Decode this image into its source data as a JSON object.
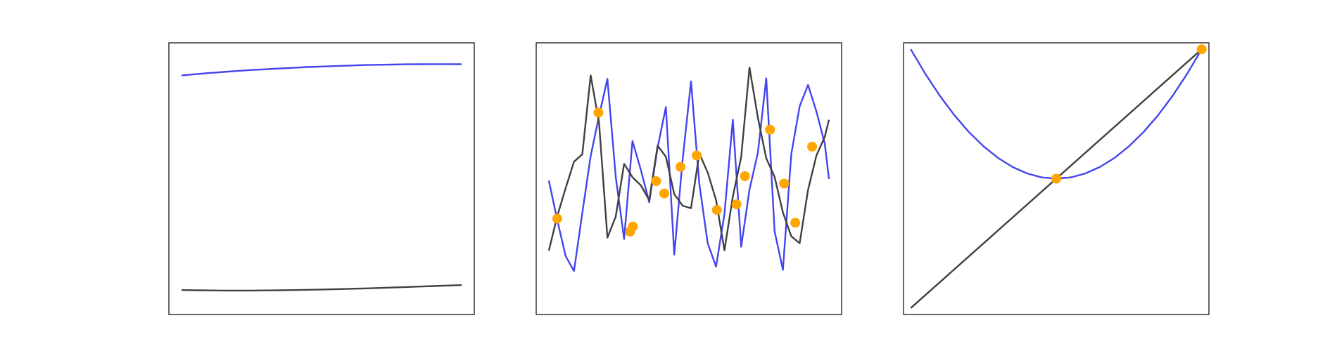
{
  "colors": {
    "series_a": "#4444ee",
    "series_b": "#404040",
    "marker": "#ffa500",
    "frame": "#000000",
    "background": "#ffffff"
  },
  "chart_data": [
    {
      "type": "line",
      "title": "",
      "xlabel": "",
      "ylabel": "",
      "xlim": [
        0,
        1
      ],
      "ylim": [
        0,
        1
      ],
      "grid": false,
      "legend": "none",
      "series": [
        {
          "x": [
            0.0,
            0.05,
            0.1,
            0.15,
            0.2,
            0.25,
            0.3,
            0.35,
            0.4,
            0.45,
            0.5,
            0.55,
            0.6,
            0.65,
            0.7,
            0.75,
            0.8,
            0.85,
            0.9,
            0.95,
            1.0
          ],
          "y": [
            0.919,
            0.924,
            0.929,
            0.933,
            0.937,
            0.941,
            0.944,
            0.947,
            0.95,
            0.953,
            0.955,
            0.957,
            0.959,
            0.961,
            0.962,
            0.963,
            0.964,
            0.9645,
            0.9648,
            0.9648,
            0.9645
          ],
          "color_key": "series_a"
        },
        {
          "x": [
            0.0,
            0.05,
            0.1,
            0.15,
            0.2,
            0.25,
            0.3,
            0.35,
            0.4,
            0.45,
            0.5,
            0.55,
            0.6,
            0.65,
            0.7,
            0.75,
            0.8,
            0.85,
            0.9,
            0.95,
            1.0
          ],
          "y": [
            0.048,
            0.047,
            0.0465,
            0.046,
            0.046,
            0.046,
            0.0465,
            0.047,
            0.048,
            0.049,
            0.05,
            0.0515,
            0.053,
            0.0545,
            0.056,
            0.058,
            0.06,
            0.062,
            0.064,
            0.066,
            0.068
          ],
          "color_key": "series_b"
        }
      ],
      "markers": []
    },
    {
      "type": "line",
      "title": "",
      "xlabel": "",
      "ylabel": "",
      "xlim": [
        0,
        1
      ],
      "ylim": [
        0,
        1
      ],
      "grid": false,
      "legend": "none",
      "series": [
        {
          "x": [
            0.0,
            0.0299,
            0.0597,
            0.0896,
            0.1194,
            0.1493,
            0.1791,
            0.209,
            0.2388,
            0.2687,
            0.2985,
            0.3284,
            0.3582,
            0.3881,
            0.4179,
            0.4478,
            0.4776,
            0.5075,
            0.5373,
            0.5672,
            0.597,
            0.6269,
            0.6567,
            0.6866,
            0.7164,
            0.7463,
            0.7761,
            0.806,
            0.8358,
            0.8657,
            0.8955,
            0.9254,
            0.9552,
            0.9851,
            1.0
          ],
          "y": [
            0.492,
            0.332,
            0.186,
            0.125,
            0.36,
            0.592,
            0.755,
            0.905,
            0.508,
            0.255,
            0.653,
            0.536,
            0.404,
            0.626,
            0.791,
            0.192,
            0.578,
            0.895,
            0.479,
            0.238,
            0.143,
            0.356,
            0.739,
            0.224,
            0.456,
            0.605,
            0.907,
            0.286,
            0.13,
            0.6,
            0.794,
            0.88,
            0.773,
            0.642,
            0.499
          ],
          "color_key": "series_a"
        },
        {
          "x": [
            0.0,
            0.0299,
            0.0597,
            0.0896,
            0.1194,
            0.1493,
            0.1791,
            0.209,
            0.2388,
            0.2687,
            0.2985,
            0.3284,
            0.3582,
            0.3881,
            0.4179,
            0.4478,
            0.4776,
            0.5075,
            0.5373,
            0.5672,
            0.597,
            0.6269,
            0.6567,
            0.6866,
            0.7164,
            0.7463,
            0.7761,
            0.806,
            0.8358,
            0.8657,
            0.8955,
            0.9254,
            0.9552,
            0.9851,
            1.0
          ],
          "y": [
            0.208,
            0.348,
            0.461,
            0.569,
            0.599,
            0.919,
            0.727,
            0.261,
            0.346,
            0.56,
            0.506,
            0.473,
            0.413,
            0.634,
            0.589,
            0.437,
            0.39,
            0.38,
            0.602,
            0.525,
            0.413,
            0.209,
            0.427,
            0.588,
            0.951,
            0.748,
            0.583,
            0.507,
            0.363,
            0.266,
            0.238,
            0.454,
            0.594,
            0.67,
            0.739
          ],
          "color_key": "series_b"
        }
      ],
      "markers": {
        "x": [
          0.03,
          0.177,
          0.29,
          0.3,
          0.383,
          0.412,
          0.47,
          0.528,
          0.6,
          0.67,
          0.7,
          0.79,
          0.84,
          0.88,
          0.94
        ],
        "y": [
          0.338,
          0.768,
          0.285,
          0.306,
          0.49,
          0.44,
          0.548,
          0.594,
          0.373,
          0.396,
          0.51,
          0.699,
          0.48,
          0.321,
          0.63
        ],
        "color_key": "marker"
      }
    },
    {
      "type": "line",
      "title": "",
      "xlabel": "",
      "ylabel": "",
      "xlim": [
        -1.05,
        1.05
      ],
      "ylim": [
        -1.05,
        1.05
      ],
      "grid": false,
      "legend": "none",
      "series": [
        {
          "x": [
            -1.0,
            -0.9,
            -0.8,
            -0.7,
            -0.6,
            -0.5,
            -0.4,
            -0.3,
            -0.2,
            -0.1,
            0.0,
            0.1,
            0.2,
            0.3,
            0.4,
            0.5,
            0.6,
            0.7,
            0.8,
            0.9,
            1.0
          ],
          "y": [
            1.0,
            0.81,
            0.64,
            0.49,
            0.36,
            0.25,
            0.16,
            0.09,
            0.04,
            0.01,
            0.0,
            0.01,
            0.04,
            0.09,
            0.16,
            0.25,
            0.36,
            0.49,
            0.64,
            0.81,
            1.0
          ],
          "color_key": "series_a"
        },
        {
          "x": [
            -1.0,
            1.0
          ],
          "y": [
            -1.0,
            1.0
          ],
          "color_key": "series_b"
        }
      ],
      "markers": {
        "x": [
          0.0,
          1.0
        ],
        "y": [
          0.0,
          1.0
        ],
        "color_key": "marker"
      }
    }
  ]
}
